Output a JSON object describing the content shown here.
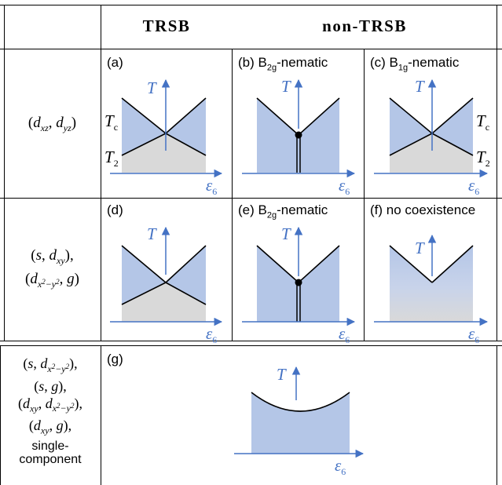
{
  "headers": {
    "trsb": "TRSB",
    "non_trsb": "non-TRSB"
  },
  "rows": [
    {
      "label": "(d_xz, d_yz)",
      "panels": [
        {
          "caption": "(a)"
        },
        {
          "caption_pre": "(b) B",
          "caption_sub": "2g",
          "caption_post": "-nematic"
        },
        {
          "caption_pre": "(c) B",
          "caption_sub": "1g",
          "caption_post": "-nematic"
        }
      ]
    },
    {
      "label": "(s, d_xy), (d_x²−y², g)",
      "panels": [
        {
          "caption": "(d)"
        },
        {
          "caption_pre": "(e) B",
          "caption_sub": "2g",
          "caption_post": "-nematic"
        },
        {
          "caption": "(f) no coexistence"
        }
      ]
    },
    {
      "label": "(s, d_x²−y²), (s, g), (d_xy, d_x²−y²), (d_xy, g), single-component",
      "label_last": "single-\ncomponent",
      "panels": [
        {
          "caption": "(g)"
        }
      ]
    }
  ],
  "axis": {
    "y_label": "T",
    "x_label": "ε",
    "x_sub": "6"
  },
  "labels": {
    "tc": "T",
    "tc_sub": "c",
    "t2": "T",
    "t2_sub": "2"
  },
  "colors": {
    "blue_fill": "#b4c6e7",
    "gray_fill": "#d9d9d9",
    "axis_blue": "#4472c4",
    "line": "#000000"
  }
}
